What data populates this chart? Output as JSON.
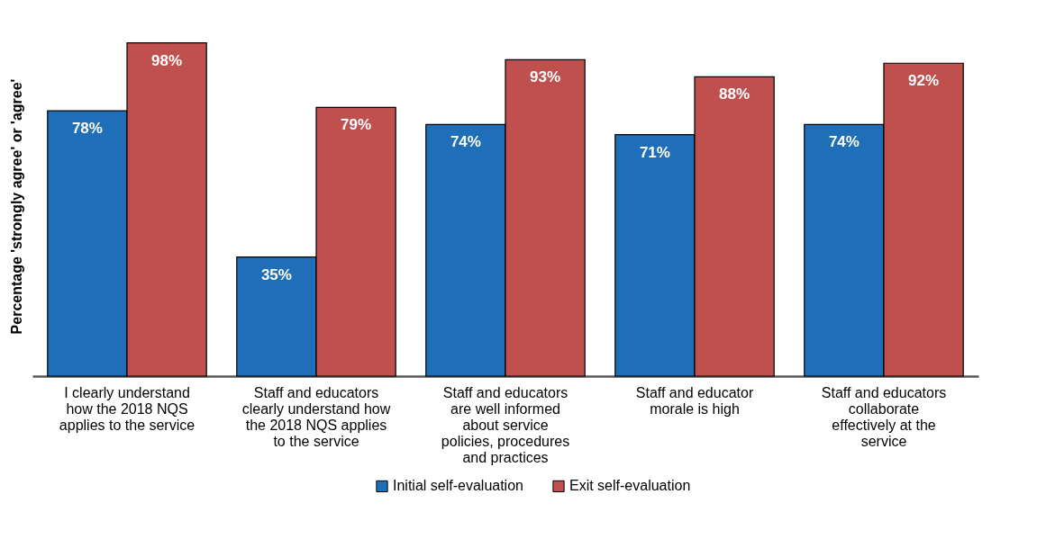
{
  "chart_data": {
    "type": "bar",
    "ylabel": "Percentage 'strongly agree' or 'agree'",
    "categories": [
      "I clearly understand how the 2018 NQS applies to the service",
      "Staff and educators clearly understand how the 2018 NQS applies to the service",
      "Staff and educators are well informed about service policies, procedures and practices",
      "Staff and educator morale is high",
      "Staff and educators collaborate effectively at the service"
    ],
    "series": [
      {
        "name": "Initial self-evaluation",
        "color": "#1f6fb8",
        "values": [
          78,
          35,
          74,
          71,
          74
        ],
        "value_labels": [
          "78%",
          "35%",
          "74%",
          "71%",
          "74%"
        ]
      },
      {
        "name": "Exit self-evaluation",
        "color": "#c0504d",
        "values": [
          98,
          79,
          93,
          88,
          92
        ],
        "value_labels": [
          "98%",
          "79%",
          "93%",
          "88%",
          "92%"
        ]
      }
    ],
    "grid": false,
    "legend": "bottom"
  }
}
